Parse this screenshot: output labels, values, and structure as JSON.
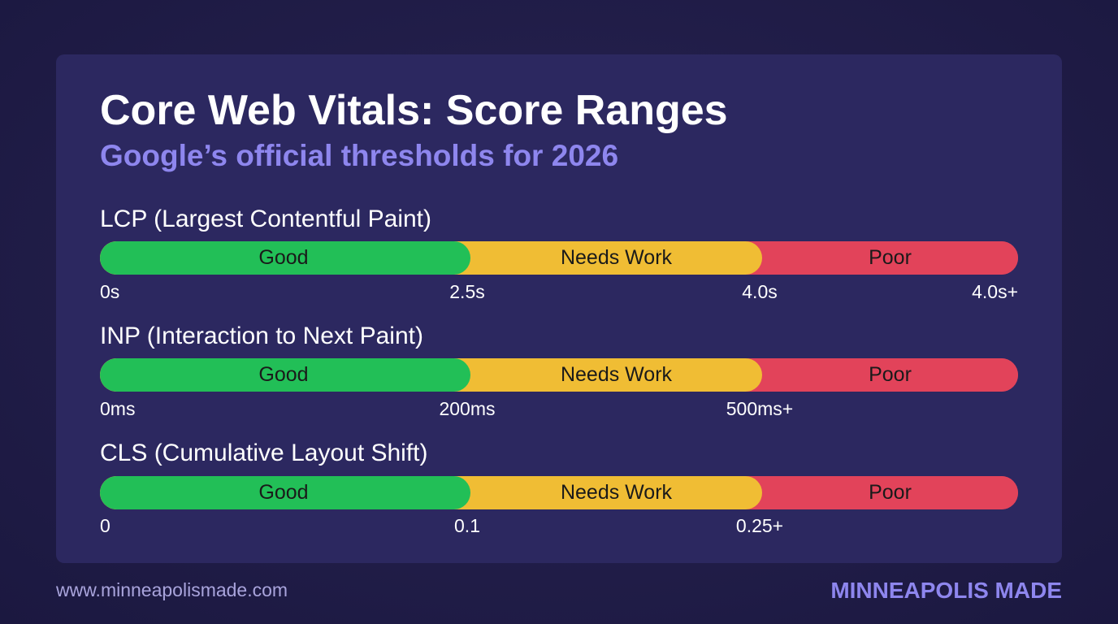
{
  "title": "Core Web Vitals: Score Ranges",
  "subtitle": "Google’s official thresholds for 2026",
  "colors": {
    "good": "#22bf57",
    "needs_work": "#f0bd34",
    "poor": "#e2435a",
    "subtitle": "#8e86ee",
    "card": "#2c2860",
    "background": "#1d1a40"
  },
  "metrics": [
    {
      "label": "LCP (Largest Contentful Paint)",
      "segments": [
        "Good",
        "Needs Work",
        "Poor"
      ],
      "ticks": [
        "0s",
        "2.5s",
        "4.0s",
        "4.0s+"
      ]
    },
    {
      "label": "INP (Interaction to Next Paint)",
      "segments": [
        "Good",
        "Needs Work",
        "Poor"
      ],
      "ticks": [
        "0ms",
        "200ms",
        "500ms+",
        ""
      ]
    },
    {
      "label": "CLS (Cumulative Layout Shift)",
      "segments": [
        "Good",
        "Needs Work",
        "Poor"
      ],
      "ticks": [
        "0",
        "0.1",
        "0.25+",
        ""
      ]
    }
  ],
  "footer": {
    "url": "www.minneapolismade.com",
    "brand": "MINNEAPOLIS MADE"
  }
}
